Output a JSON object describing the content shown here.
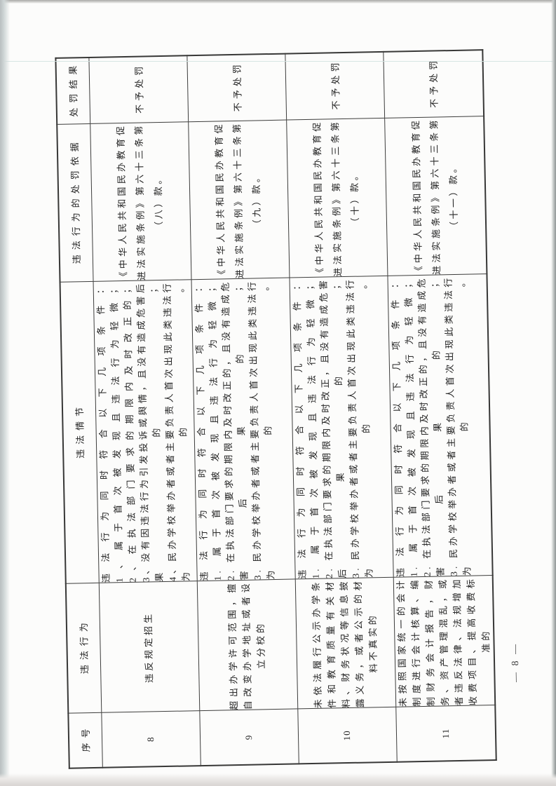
{
  "document": {
    "page_number_label": "— 8 —"
  },
  "table": {
    "headers": {
      "index": "序号",
      "violation": "违法行为",
      "circumstance": "违法情节",
      "basis": "违法行为的处罚依据",
      "result": "处罚结果"
    },
    "rows": [
      {
        "index": "8",
        "violation": "违反规定招生",
        "circumstance": {
          "intro": "违法行为同时符合以下几项条件：",
          "items": [
            "1、属于首次被发现且违法行为轻微；",
            "2、在执法部门要求的期限内及时改正的；",
            "3、没有因违法行为引发投诉或舆情，且没有造成危害后果的；",
            "4、民办学校举办者或者主要负责人首次出现此类违法行为的。"
          ]
        },
        "basis": "《中华人民共和国民办教育促进法实施条例》第六十三条第（八）款。",
        "result": "不予处罚"
      },
      {
        "index": "9",
        "violation": "超出办学许可范围，擅自改变办学地址或者设立分校的",
        "circumstance": {
          "intro": "违法行为同时符合以下几项条件：",
          "items": [
            "1. 属于首次被发现且违法行为轻微；",
            "2. 在执法部门要求的期限内及时改正的，且没有造成危害后果的；",
            "3. 民办学校举办者或者主要负责人首次出现此类违法行为的。"
          ]
        },
        "basis": "《中华人民共和国民办教育促进法实施条例》第六十三条第（九）款。",
        "result": "不予处罚"
      },
      {
        "index": "10",
        "violation": "未依法履行公示办学条件和教育质量有关材料、财务状况等信息披露义务，或者公示的材料不真实的",
        "circumstance": {
          "intro": "违法行为同时符合以下几项条件：",
          "items": [
            "1. 属于首次被发现且违法行为轻微；",
            "2. 在执法部门要求的期限内及时改正，且没有造成危害后果的；",
            "3. 民办学校举办者或者主要负责人首次出现此类违法行为的。"
          ]
        },
        "basis": "《中华人民共和国民办教育促进法实施条例》第六十三条第（十）款。",
        "result": "不予处罚"
      },
      {
        "index": "11",
        "violation": "未按照国家统一的会计制度进行会计核算、编制财务会计报告，财务、资产管理混乱，或者违反法律、法规增加收费项目、提高收费标准的",
        "circumstance": {
          "intro": "违法行为同时符合以下几项条件：",
          "items": [
            "1. 属于首次被发现且违法行为轻微；",
            "2. 在执法部门要求的期限内及时改正的，且没有造成危害后果的；",
            "3. 民办学校举办者或者主要负责人首次出现此类违法行为的。"
          ]
        },
        "basis": "《中华人民共和国民办教育促进法实施条例》第六十三条第（十一）款。",
        "result": "不予处罚"
      }
    ]
  }
}
